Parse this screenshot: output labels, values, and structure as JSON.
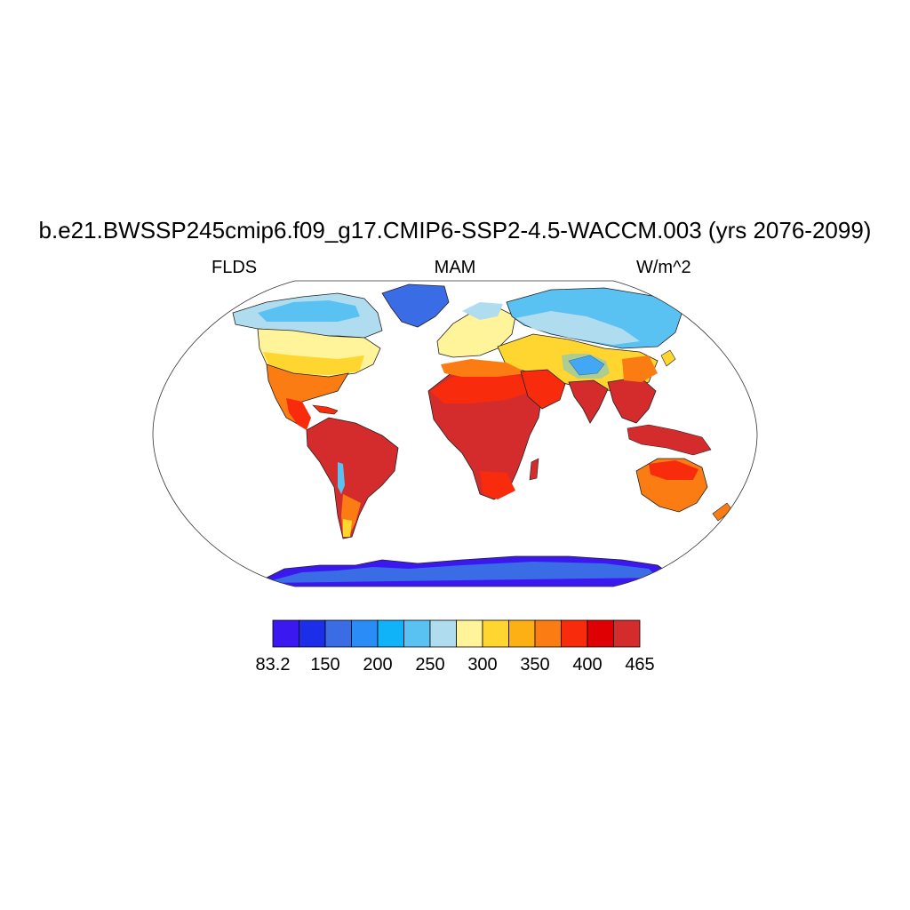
{
  "title": "b.e21.BWSSP245cmip6.f09_g17.CMIP6-SSP2-4.5-WACCM.003 (yrs 2076-2099)",
  "left_label": "FLDS",
  "center_label": "MAM",
  "right_label": "W/m^2",
  "colorbar": {
    "colors": [
      "#3c18f0",
      "#1c2ee8",
      "#3a6ce6",
      "#2a8cf6",
      "#10b2f8",
      "#5ac2f2",
      "#b0dcf0",
      "#fff49a",
      "#ffd630",
      "#fdb014",
      "#fb7c12",
      "#f82c0c",
      "#de0002",
      "#d42c2c"
    ],
    "tick_labels": [
      "83.2",
      "150",
      "200",
      "250",
      "300",
      "350",
      "400",
      "465"
    ]
  },
  "map_regions": {
    "antarctica": "#3c18f0",
    "greenland": "#3a6ce6",
    "tibet": "#2a8cf6",
    "arctic_north_america": "#b0dcf0",
    "siberia": "#5ac2f2",
    "north_america_mid": "#fff49a",
    "tropics": "#d42c2c",
    "subtropics": "#f82c0c",
    "australia": "#fb7c12"
  }
}
